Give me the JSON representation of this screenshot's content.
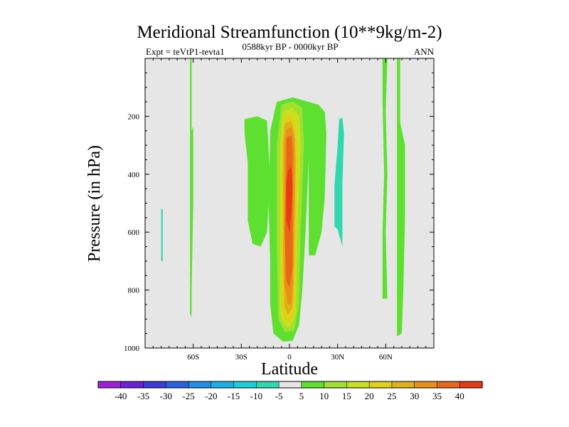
{
  "chart_data": {
    "type": "heatmap",
    "subtype": "filled-contour",
    "title": "Meridional Streamfunction (10**9kg/m-2)",
    "left_subtitle": "Expt = teVtP1-tevta1",
    "center_subtitle": "0588kyr BP - 0000kyr BP",
    "right_subtitle": "ANN",
    "xlabel": "Latitude",
    "ylabel": "Pressure (in hPa)",
    "xlim": [
      -90,
      90
    ],
    "ylim": [
      0,
      1000
    ],
    "y_reversed": true,
    "x_ticks": [
      {
        "value": -60,
        "label": "60S"
      },
      {
        "value": -30,
        "label": "30S"
      },
      {
        "value": 0,
        "label": "0"
      },
      {
        "value": 30,
        "label": "30N"
      },
      {
        "value": 60,
        "label": "60N"
      }
    ],
    "y_ticks": [
      {
        "value": 200,
        "label": "200"
      },
      {
        "value": 400,
        "label": "400"
      },
      {
        "value": 600,
        "label": "600"
      },
      {
        "value": 800,
        "label": "800"
      },
      {
        "value": 1000,
        "label": "1000"
      }
    ],
    "background_color": "#e6e6e6",
    "colorbar": {
      "levels": [
        "-40",
        "-35",
        "-30",
        "-25",
        "-20",
        "-15",
        "-10",
        "-5",
        "5",
        "10",
        "15",
        "20",
        "25",
        "30",
        "35",
        "40"
      ],
      "colors": [
        "#9f1fd8",
        "#6a1fd8",
        "#3a3ad8",
        "#2a62e0",
        "#1e8ee6",
        "#18b0e8",
        "#18d0d8",
        "#30d8b0",
        "#e6e6e6",
        "#5de030",
        "#a0e030",
        "#c8e020",
        "#e0d018",
        "#e0b018",
        "#e89018",
        "#e86818",
        "#e83a14"
      ]
    },
    "regions": [
      {
        "name": "tropical-positive-cell",
        "level": 5,
        "color": "#5de030",
        "points": [
          [
            -8,
            150
          ],
          [
            2,
            135
          ],
          [
            12,
            150
          ],
          [
            14,
            250
          ],
          [
            12,
            350
          ],
          [
            10,
            600
          ],
          [
            8,
            800
          ],
          [
            6,
            920
          ],
          [
            2,
            975
          ],
          [
            -4,
            978
          ],
          [
            -10,
            950
          ],
          [
            -12,
            850
          ],
          [
            -12,
            700
          ],
          [
            -13,
            500
          ],
          [
            -12,
            250
          ]
        ]
      },
      {
        "name": "tropical-positive-cell",
        "level": 10,
        "color": "#a0e030",
        "points": [
          [
            -5,
            160
          ],
          [
            2,
            148
          ],
          [
            8,
            170
          ],
          [
            9,
            300
          ],
          [
            7,
            600
          ],
          [
            6,
            850
          ],
          [
            3,
            940
          ],
          [
            -3,
            945
          ],
          [
            -7,
            900
          ],
          [
            -8,
            600
          ],
          [
            -8,
            300
          ]
        ]
      },
      {
        "name": "tropical-positive-cell",
        "level": 15,
        "color": "#c8e020",
        "points": [
          [
            -4,
            185
          ],
          [
            2,
            170
          ],
          [
            6,
            200
          ],
          [
            7,
            300
          ],
          [
            5,
            600
          ],
          [
            4,
            880
          ],
          [
            1,
            925
          ],
          [
            -3,
            925
          ],
          [
            -6,
            880
          ],
          [
            -6,
            600
          ],
          [
            -6,
            300
          ]
        ]
      },
      {
        "name": "tropical-positive-cell",
        "level": 20,
        "color": "#e0d018",
        "points": [
          [
            -3,
            205
          ],
          [
            1,
            195
          ],
          [
            4,
            225
          ],
          [
            5,
            320
          ],
          [
            4,
            650
          ],
          [
            3,
            880
          ],
          [
            0,
            910
          ],
          [
            -3,
            900
          ],
          [
            -5,
            850
          ],
          [
            -5,
            500
          ],
          [
            -5,
            300
          ]
        ]
      },
      {
        "name": "tropical-positive-cell",
        "level": 25,
        "color": "#e0b018",
        "points": [
          [
            -3,
            225
          ],
          [
            1,
            215
          ],
          [
            3,
            250
          ],
          [
            4,
            350
          ],
          [
            3,
            700
          ],
          [
            2,
            860
          ],
          [
            -1,
            885
          ],
          [
            -3,
            860
          ],
          [
            -4,
            700
          ],
          [
            -4,
            450
          ],
          [
            -4,
            300
          ]
        ]
      },
      {
        "name": "tropical-positive-cell",
        "level": 30,
        "color": "#e89018",
        "points": [
          [
            -2,
            245
          ],
          [
            1,
            238
          ],
          [
            3,
            280
          ],
          [
            3,
            450
          ],
          [
            2,
            780
          ],
          [
            1,
            850
          ],
          [
            -1,
            850
          ],
          [
            -3,
            780
          ],
          [
            -3,
            450
          ],
          [
            -3,
            300
          ]
        ]
      },
      {
        "name": "tropical-positive-cell",
        "level": 35,
        "color": "#e86818",
        "points": [
          [
            -2,
            275
          ],
          [
            1,
            265
          ],
          [
            2,
            320
          ],
          [
            2,
            500
          ],
          [
            2,
            720
          ],
          [
            0,
            790
          ],
          [
            -2,
            770
          ],
          [
            -3,
            600
          ],
          [
            -2,
            350
          ]
        ]
      },
      {
        "name": "tropical-positive-cell",
        "level": 40,
        "color": "#e83a14",
        "points": [
          [
            -1,
            385
          ],
          [
            1,
            375
          ],
          [
            2,
            440
          ],
          [
            1,
            540
          ],
          [
            0,
            600
          ],
          [
            -2,
            560
          ],
          [
            -2,
            440
          ]
        ]
      },
      {
        "name": "southern-shoulder",
        "level": 5,
        "color": "#5de030",
        "points": [
          [
            -28,
            210
          ],
          [
            -20,
            200
          ],
          [
            -14,
            215
          ],
          [
            -12,
            420
          ],
          [
            -14,
            600
          ],
          [
            -18,
            650
          ],
          [
            -23,
            640
          ],
          [
            -26,
            560
          ],
          [
            -26,
            360
          ],
          [
            -28,
            260
          ]
        ]
      },
      {
        "name": "northern-shoulder",
        "level": 5,
        "color": "#5de030",
        "points": [
          [
            12,
            150
          ],
          [
            18,
            160
          ],
          [
            22,
            185
          ],
          [
            23,
            260
          ],
          [
            22,
            480
          ],
          [
            20,
            600
          ],
          [
            16,
            680
          ],
          [
            12,
            680
          ],
          [
            12,
            300
          ]
        ]
      },
      {
        "name": "negative-cell-30N",
        "level": -5,
        "color": "#30d8b0",
        "points": [
          [
            31,
            210
          ],
          [
            33,
            205
          ],
          [
            34,
            260
          ],
          [
            33,
            430
          ],
          [
            33,
            650
          ],
          [
            30,
            590
          ],
          [
            28,
            580
          ],
          [
            28,
            440
          ],
          [
            30,
            300
          ]
        ]
      },
      {
        "name": "strip-60S-positive",
        "level": 5,
        "color": "#5de030",
        "points": [
          [
            -62,
            0
          ],
          [
            -61,
            0
          ],
          [
            -61,
            250
          ],
          [
            -60,
            235
          ],
          [
            -60,
            500
          ],
          [
            -61,
            800
          ],
          [
            -61,
            895
          ],
          [
            -62,
            880
          ],
          [
            -62,
            500
          ]
        ]
      },
      {
        "name": "strip-80S-negative",
        "level": -5,
        "color": "#30d8b0",
        "points": [
          [
            -80,
            520
          ],
          [
            -79,
            520
          ],
          [
            -79,
            700
          ],
          [
            -80,
            700
          ]
        ]
      },
      {
        "name": "strip-60N-positive",
        "level": 5,
        "color": "#5de030",
        "points": [
          [
            58,
            0
          ],
          [
            61,
            0
          ],
          [
            60,
            180
          ],
          [
            61,
            400
          ],
          [
            60,
            600
          ],
          [
            61,
            830
          ],
          [
            58,
            830
          ],
          [
            58,
            600
          ],
          [
            59,
            400
          ],
          [
            58,
            150
          ]
        ]
      },
      {
        "name": "strip-70N-positive",
        "level": 5,
        "color": "#5de030",
        "points": [
          [
            67,
            0
          ],
          [
            69,
            0
          ],
          [
            69,
            220
          ],
          [
            72,
            300
          ],
          [
            72,
            550
          ],
          [
            71,
            800
          ],
          [
            70,
            950
          ],
          [
            67,
            960
          ],
          [
            67,
            600
          ],
          [
            67,
            300
          ]
        ]
      }
    ]
  }
}
